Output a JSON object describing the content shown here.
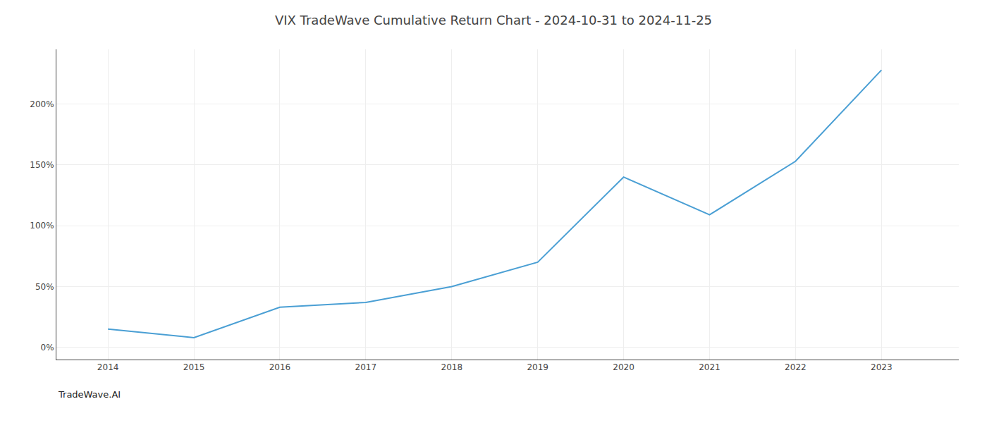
{
  "chart_data": {
    "type": "line",
    "title": "VIX TradeWave Cumulative Return Chart - 2024-10-31 to 2024-11-25",
    "annotations": [
      "TradeWave.AI"
    ],
    "x": [
      2014,
      2015,
      2016,
      2017,
      2018,
      2019,
      2020,
      2021,
      2022,
      2023
    ],
    "values": [
      15,
      8,
      33,
      37,
      50,
      70,
      140,
      109,
      153,
      228
    ],
    "color": "#4a9fd4",
    "xlim": [
      2013.4,
      2023.9
    ],
    "xticks": [
      2014,
      2015,
      2016,
      2017,
      2018,
      2019,
      2020,
      2021,
      2022,
      2023
    ],
    "ylim": [
      -10,
      245
    ],
    "yticks": [
      {
        "value": 0,
        "label": "0%"
      },
      {
        "value": 50,
        "label": "50%"
      },
      {
        "value": 100,
        "label": "100%"
      },
      {
        "value": 150,
        "label": "150%"
      },
      {
        "value": 200,
        "label": "200%"
      }
    ],
    "grid": true
  }
}
